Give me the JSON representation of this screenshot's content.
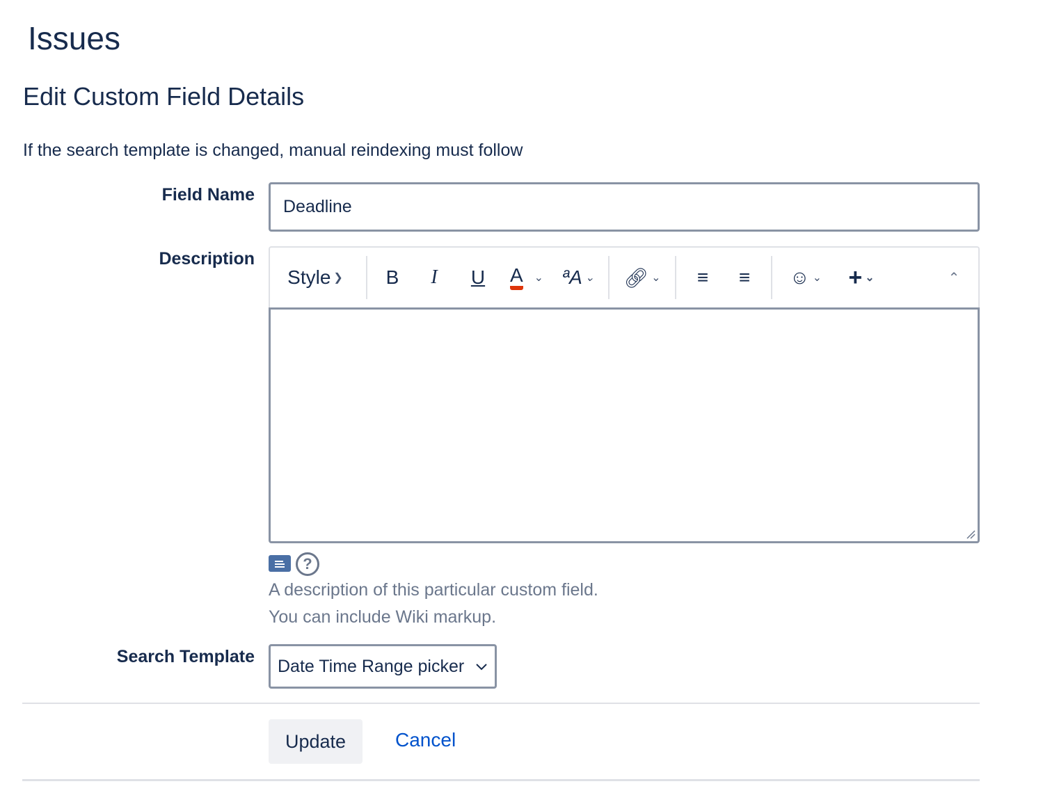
{
  "page_title": "Issues",
  "section_title": "Edit Custom Field Details",
  "notice": "If the search template is changed, manual reindexing must follow",
  "field_name": {
    "label": "Field Name",
    "value": "Deadline"
  },
  "description": {
    "label": "Description",
    "toolbar": {
      "style": "Style",
      "bold": "B",
      "italic": "I",
      "underline": "U",
      "text_color": "A",
      "text_color_accent": "#de350b",
      "more_format": "ªA"
    },
    "hint_line1": "A description of this particular custom field.",
    "hint_line2": "You can include Wiki markup."
  },
  "search_template": {
    "label": "Search Template",
    "value": "Date Time Range picker"
  },
  "buttons": {
    "update": "Update",
    "cancel": "Cancel"
  }
}
